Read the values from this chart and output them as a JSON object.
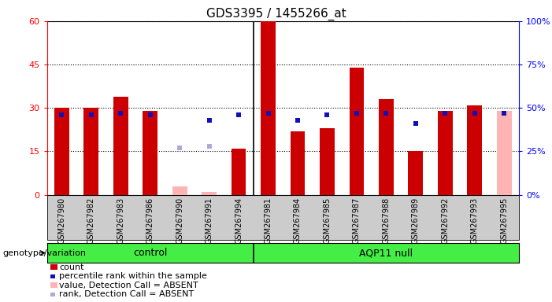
{
  "title": "GDS3395 / 1455266_at",
  "samples": [
    "GSM267980",
    "GSM267982",
    "GSM267983",
    "GSM267986",
    "GSM267990",
    "GSM267991",
    "GSM267994",
    "GSM267981",
    "GSM267984",
    "GSM267985",
    "GSM267987",
    "GSM267988",
    "GSM267989",
    "GSM267992",
    "GSM267993",
    "GSM267995"
  ],
  "groups": [
    "control",
    "control",
    "control",
    "control",
    "control",
    "control",
    "control",
    "AQP11 null",
    "AQP11 null",
    "AQP11 null",
    "AQP11 null",
    "AQP11 null",
    "AQP11 null",
    "AQP11 null",
    "AQP11 null",
    "AQP11 null"
  ],
  "count": [
    30,
    30,
    34,
    29,
    null,
    null,
    16,
    60,
    22,
    23,
    44,
    33,
    15,
    29,
    31,
    null
  ],
  "count_absent": [
    null,
    null,
    null,
    null,
    3,
    1,
    null,
    null,
    null,
    null,
    null,
    null,
    null,
    null,
    null,
    29
  ],
  "percentile_rank": [
    46,
    46,
    47,
    46,
    null,
    43,
    46,
    47,
    43,
    46,
    47,
    47,
    41,
    47,
    47,
    47
  ],
  "percentile_rank_absent": [
    null,
    null,
    null,
    null,
    27,
    28,
    null,
    null,
    null,
    null,
    null,
    null,
    null,
    null,
    null,
    null
  ],
  "left_ylim": [
    0,
    60
  ],
  "right_ylim": [
    0,
    100
  ],
  "left_yticks": [
    0,
    15,
    30,
    45,
    60
  ],
  "right_yticks": [
    0,
    25,
    50,
    75,
    100
  ],
  "bar_color_red": "#cc0000",
  "bar_color_pink": "#ffb3b3",
  "square_color_blue": "#1111bb",
  "square_color_lightblue": "#aaaadd",
  "group_color": "#44ee44",
  "bg_color": "#cccccc",
  "plot_bg": "#ffffff",
  "separator_index": 7,
  "bar_width": 0.5
}
